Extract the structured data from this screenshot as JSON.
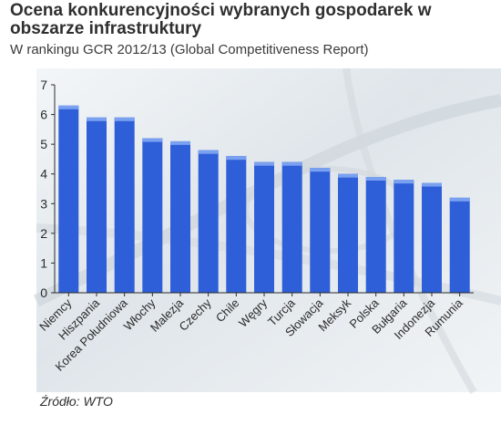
{
  "colors": {
    "bar": "#2f5fd8",
    "bar_top": "#7aa0f0",
    "axis": "#2a2a2a",
    "text": "#2f2f2f",
    "plot_bg": "#e7ecf0"
  },
  "chart_data": {
    "type": "bar",
    "title": "Ocena konkurencyjności wybranych gospodarek w obszarze infrastruktury",
    "subtitle": "W rankingu GCR 2012/13 (Global Competitiveness Report)",
    "xlabel": "",
    "ylabel": "",
    "ylim": [
      0,
      7
    ],
    "yticks": [
      0,
      1,
      2,
      3,
      4,
      5,
      6,
      7
    ],
    "grid": false,
    "categories": [
      "Niemcy",
      "Hiszpania",
      "Korea Południowa",
      "Włochy",
      "Malezja",
      "Czechy",
      "Chile",
      "Węgry",
      "Turcja",
      "Słowacja",
      "Meksyk",
      "Polska",
      "Bułgaria",
      "Indonezja",
      "Rumunia"
    ],
    "values": [
      6.3,
      5.9,
      5.9,
      5.2,
      5.1,
      4.8,
      4.6,
      4.4,
      4.4,
      4.2,
      4.0,
      3.9,
      3.8,
      3.7,
      3.2
    ]
  },
  "source": "Źródło: WTO"
}
